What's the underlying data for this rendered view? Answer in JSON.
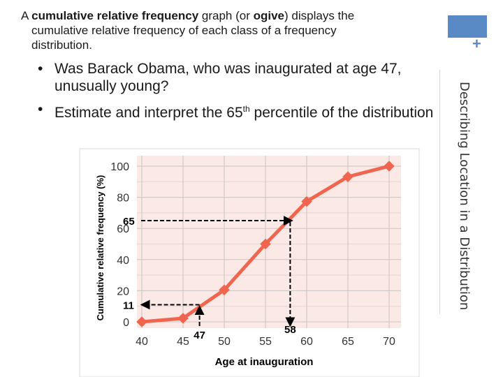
{
  "slide": {
    "intro": {
      "p1": "A ",
      "b1": "cumulative relative frequency",
      "p2": " graph (or ",
      "b2": "ogive",
      "p3": ") displays the",
      "line2": "cumulative relative frequency of each class of a frequency",
      "line3": "distribution."
    },
    "bullets": [
      {
        "text": "Was Barack Obama, who was inaugurated at age 47, unusually young?"
      },
      {
        "pre": "Estimate and interpret the 65",
        "sup": "th",
        "post": " percentile of the distribution"
      }
    ],
    "bullet_glyph": "•",
    "sidebar_title": "Describing Location in a Distribution",
    "plus_icon": "+",
    "accent_color": "#5a8ac6"
  },
  "chart_data": {
    "type": "line",
    "x": [
      40,
      45,
      50,
      55,
      60,
      65,
      70
    ],
    "series": [
      {
        "values": [
          0,
          2.3,
          20.5,
          50,
          77.3,
          93.2,
          100
        ]
      }
    ],
    "xlabel": "Age at inauguration",
    "ylabel": "Cumulative relative frequency (%)",
    "xlim": [
      40,
      70
    ],
    "ylim": [
      0,
      100
    ],
    "xticks": [
      "40",
      "45",
      "50",
      "55",
      "60",
      "65",
      "70"
    ],
    "yticks": [
      "0",
      "20",
      "40",
      "60",
      "80",
      "100"
    ],
    "grid": true,
    "line_color": "#f0654f",
    "plot_bg": "#fbe9e6",
    "annotations": [
      {
        "label": "65",
        "y": 65,
        "x": 58,
        "direction": "from-y-axis"
      },
      {
        "label": "58",
        "x": 58,
        "y": 65,
        "direction": "to-x-axis"
      },
      {
        "label": "11",
        "y": 11,
        "x": 47,
        "direction": "to-y-axis"
      },
      {
        "label": "47",
        "x": 47,
        "y": 11,
        "direction": "from-x-axis"
      }
    ]
  }
}
